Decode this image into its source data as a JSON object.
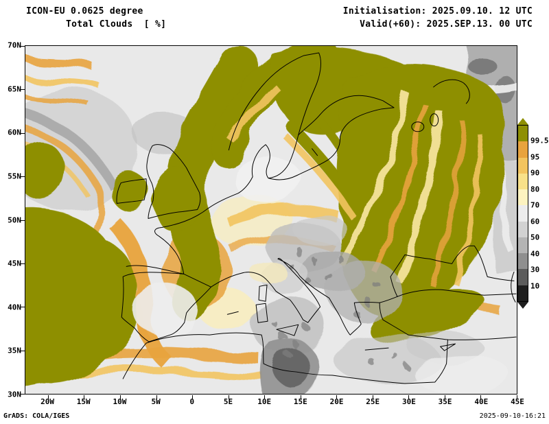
{
  "header": {
    "model_line": "ICON-EU 0.0625 degree",
    "field_line": "Total Clouds  [ %]",
    "init_line": "Initialisation: 2025.09.10. 12 UTC",
    "valid_line": "Valid(+60): 2025.SEP.13. 00 UTC"
  },
  "axes": {
    "lat_labels": [
      "70N",
      "65N",
      "60N",
      "55N",
      "50N",
      "45N",
      "40N",
      "35N",
      "30N"
    ],
    "lon_labels": [
      "20W",
      "15W",
      "10W",
      "5W",
      "0",
      "5E",
      "10E",
      "15E",
      "20E",
      "25E",
      "30E",
      "35E",
      "40E",
      "45E"
    ]
  },
  "colorbar": {
    "labels": [
      "99.5",
      "95",
      "90",
      "80",
      "70",
      "60",
      "50",
      "40",
      "30",
      "10"
    ],
    "colors": [
      "#8e8f04",
      "#e8a33d",
      "#f2c45f",
      "#f8e189",
      "#fdf3c0",
      "#ececec",
      "#d2d2d2",
      "#b4b4b4",
      "#8f8f8f",
      "#5c5c5c",
      "#1e1e1e"
    ]
  },
  "map_colors": {
    "clear_background": "#e9e9e9",
    "overcast_olive": "#8e8f04",
    "coastline": "#000000"
  },
  "footer": {
    "left": "GrADS: COLA/IGES",
    "right": "2025-09-10-16:21"
  }
}
